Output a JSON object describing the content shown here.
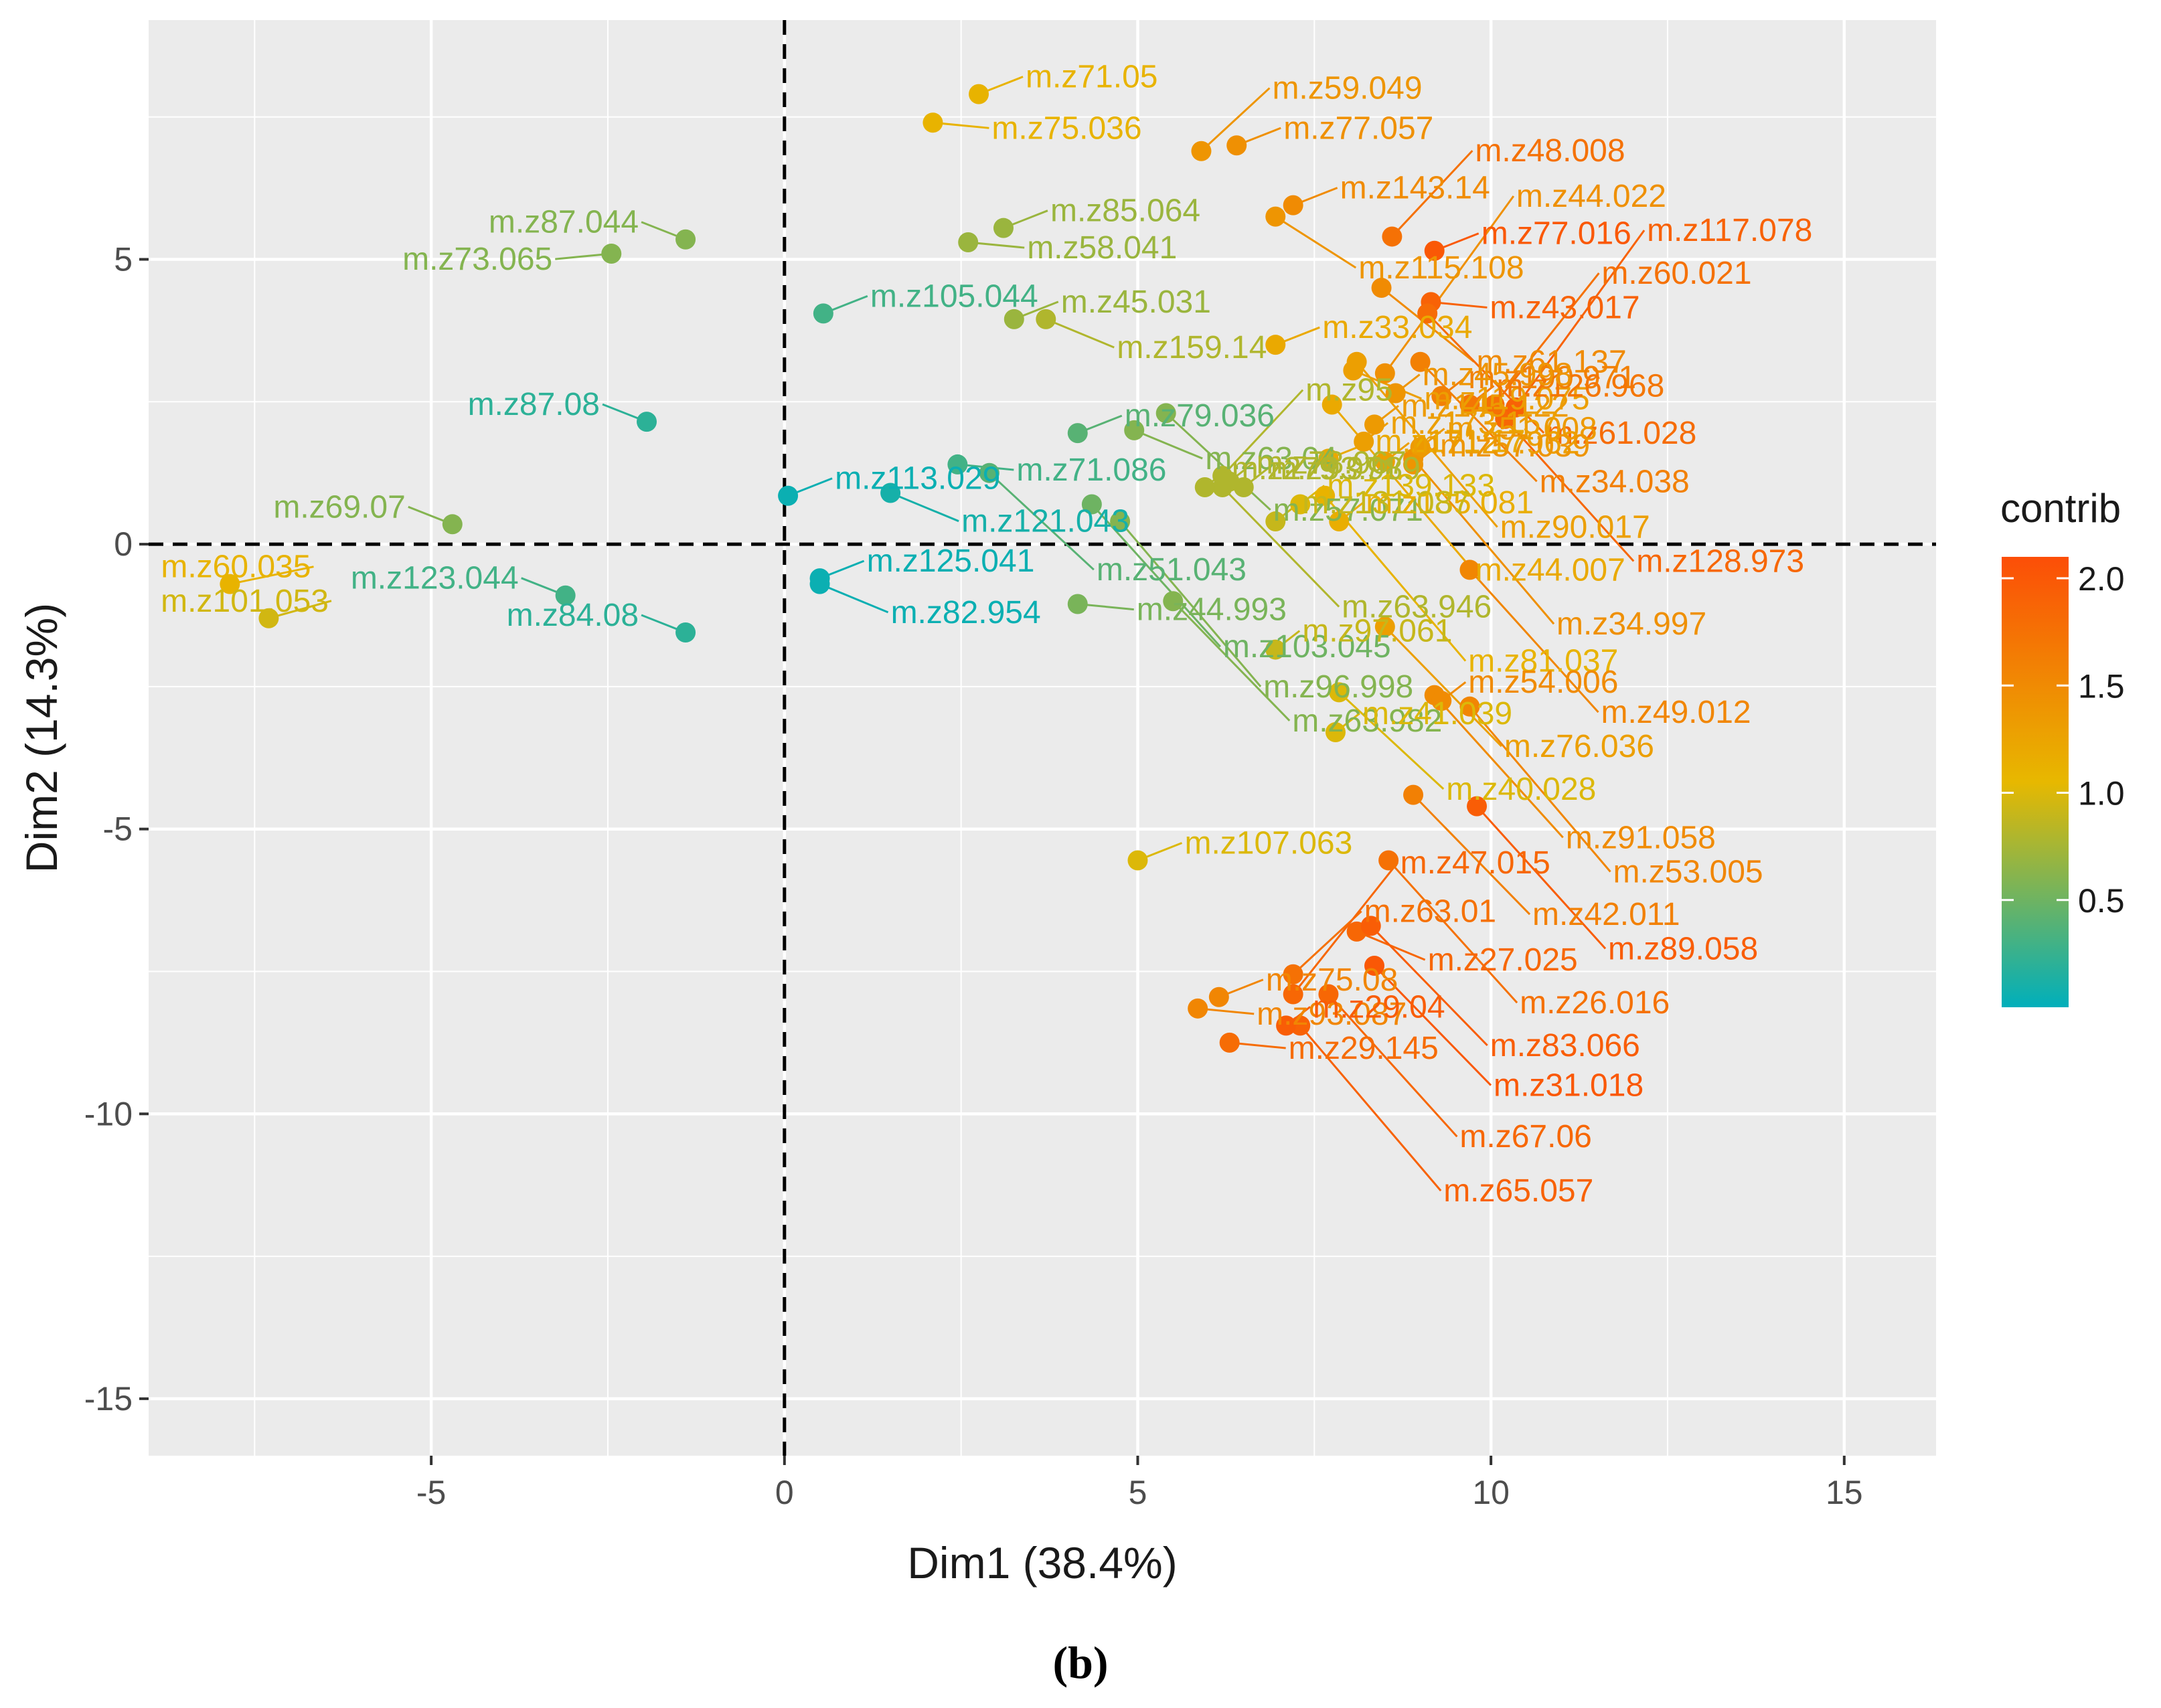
{
  "chart_data": {
    "type": "scatter",
    "xlabel": "Dim1 (38.4%)",
    "ylabel": "Dim2 (14.3%)",
    "xlim": [
      -9,
      16.3
    ],
    "ylim": [
      -16,
      9.2
    ],
    "x_ticks": [
      -5,
      0,
      5,
      10,
      15
    ],
    "y_ticks": [
      -15,
      -10,
      -5,
      0,
      5
    ],
    "grid": true,
    "reference_lines": {
      "x": 0,
      "y": 0,
      "style": "dashed"
    },
    "legend": {
      "title": "contrib",
      "type": "colorbar",
      "placement": "right",
      "ticks": [
        0.5,
        1.0,
        1.5,
        2.0
      ],
      "range": [
        0,
        2.1
      ],
      "colors": [
        "#00AFBB",
        "#E7B800",
        "#FC4E07"
      ]
    },
    "points": [
      {
        "label": "m.z71.05",
        "x": 2.75,
        "y": 7.9,
        "contrib": 1.1
      },
      {
        "label": "m.z75.036",
        "x": 2.1,
        "y": 7.4,
        "contrib": 1.1
      },
      {
        "label": "m.z77.057",
        "x": 6.4,
        "y": 7.0,
        "contrib": 1.45
      },
      {
        "label": "m.z59.049",
        "x": 5.9,
        "y": 6.9,
        "contrib": 1.4
      },
      {
        "label": "m.z143.14",
        "x": 7.2,
        "y": 5.95,
        "contrib": 1.5
      },
      {
        "label": "m.z77.016",
        "x": 9.2,
        "y": 5.15,
        "contrib": 2.0
      },
      {
        "label": "m.z115.108",
        "x": 6.95,
        "y": 5.75,
        "contrib": 1.4
      },
      {
        "label": "m.z48.008",
        "x": 8.6,
        "y": 5.4,
        "contrib": 1.75
      },
      {
        "label": "m.z43.017",
        "x": 9.15,
        "y": 4.25,
        "contrib": 1.9
      },
      {
        "label": "m.z87.044",
        "x": -1.4,
        "y": 5.35,
        "contrib": 0.6
      },
      {
        "label": "m.z73.065",
        "x": -2.45,
        "y": 5.1,
        "contrib": 0.6
      },
      {
        "label": "m.z85.064",
        "x": 3.1,
        "y": 5.55,
        "contrib": 0.7
      },
      {
        "label": "m.z58.041",
        "x": 2.6,
        "y": 5.3,
        "contrib": 0.7
      },
      {
        "label": "m.z61.137",
        "x": 8.45,
        "y": 4.5,
        "contrib": 1.5
      },
      {
        "label": "m.z33.034",
        "x": 6.95,
        "y": 3.5,
        "contrib": 1.2
      },
      {
        "label": "m.z119.075",
        "x": 8.05,
        "y": 3.05,
        "contrib": 1.3
      },
      {
        "label": "m.z61.028",
        "x": 9.1,
        "y": 4.05,
        "contrib": 1.8
      },
      {
        "label": "m.z34.038",
        "x": 9.0,
        "y": 3.2,
        "contrib": 1.6
      },
      {
        "label": "m.z105.044",
        "x": 0.55,
        "y": 4.05,
        "contrib": 0.3
      },
      {
        "label": "m.z45.031",
        "x": 3.25,
        "y": 3.95,
        "contrib": 0.7
      },
      {
        "label": "m.z159.14",
        "x": 3.7,
        "y": 3.95,
        "contrib": 0.8
      },
      {
        "label": "m.z90.017",
        "x": 8.1,
        "y": 3.2,
        "contrib": 1.3
      },
      {
        "label": "m.z44.022",
        "x": 8.5,
        "y": 3.0,
        "contrib": 1.45
      },
      {
        "label": "m.z128.973",
        "x": 10.2,
        "y": 2.2,
        "contrib": 1.85
      },
      {
        "label": "m.z190.971",
        "x": 9.3,
        "y": 2.6,
        "contrib": 1.6
      },
      {
        "label": "m.z87.08",
        "x": -1.95,
        "y": 2.15,
        "contrib": 0.2
      },
      {
        "label": "m.z79.036",
        "x": 4.15,
        "y": 1.95,
        "contrib": 0.4
      },
      {
        "label": "m.z63.04",
        "x": 4.95,
        "y": 2.0,
        "contrib": 0.6
      },
      {
        "label": "m.z44.007",
        "x": 7.75,
        "y": 2.45,
        "contrib": 1.2
      },
      {
        "label": "m.z145.122",
        "x": 8.35,
        "y": 2.1,
        "contrib": 1.35
      },
      {
        "label": "m.z57.071",
        "x": 5.4,
        "y": 2.3,
        "contrib": 0.6
      },
      {
        "label": "m.z60.021",
        "x": 10.05,
        "y": 2.45,
        "contrib": 1.75
      },
      {
        "label": "m.z69.07",
        "x": -4.7,
        "y": 0.35,
        "contrib": 0.6
      },
      {
        "label": "m.z113.029",
        "x": 0.05,
        "y": 0.85,
        "contrib": 0.05
      },
      {
        "label": "m.z121.043",
        "x": 1.5,
        "y": 0.9,
        "contrib": 0.1
      },
      {
        "label": "m.z71.086",
        "x": 2.45,
        "y": 1.4,
        "contrib": 0.3
      },
      {
        "label": "m.z51.043",
        "x": 2.9,
        "y": 1.25,
        "contrib": 0.4
      },
      {
        "label": "m.z63.946",
        "x": 6.2,
        "y": 1.0,
        "contrib": 0.8
      },
      {
        "label": "m.z171.17",
        "x": 7.7,
        "y": 1.5,
        "contrib": 1.2
      },
      {
        "label": "m.z34.997",
        "x": 8.9,
        "y": 1.5,
        "contrib": 1.45
      },
      {
        "label": "m.z126.968",
        "x": 9.7,
        "y": 2.45,
        "contrib": 1.7
      },
      {
        "label": "m.z117.078",
        "x": 10.35,
        "y": 2.4,
        "contrib": 1.9
      },
      {
        "label": "m.z125.041",
        "x": 0.5,
        "y": -0.6,
        "contrib": 0.05
      },
      {
        "label": "m.z103.045",
        "x": 4.35,
        "y": 0.7,
        "contrib": 0.5
      },
      {
        "label": "m.z96.998",
        "x": 4.75,
        "y": 0.4,
        "contrib": 0.6
      },
      {
        "label": "m.z81.037",
        "x": 7.65,
        "y": 0.85,
        "contrib": 1.1
      },
      {
        "label": "m.z45.998",
        "x": 8.65,
        "y": 2.65,
        "contrib": 1.4
      },
      {
        "label": "m.z51.008",
        "x": 9.0,
        "y": 1.7,
        "contrib": 1.35
      },
      {
        "label": "m.z127.962",
        "x": 8.5,
        "y": 1.45,
        "contrib": 1.3
      },
      {
        "label": "m.z60.035",
        "x": -7.85,
        "y": -0.7,
        "contrib": 1.1
      },
      {
        "label": "m.z101.053",
        "x": -7.3,
        "y": -1.3,
        "contrib": 0.95
      },
      {
        "label": "m.z123.044",
        "x": -3.1,
        "y": -0.9,
        "contrib": 0.3
      },
      {
        "label": "m.z82.954",
        "x": 0.5,
        "y": -0.7,
        "contrib": 0.05
      },
      {
        "label": "m.z84.08",
        "x": -1.4,
        "y": -1.55,
        "contrib": 0.2
      },
      {
        "label": "m.z279.971",
        "x": 5.95,
        "y": 1.0,
        "contrib": 0.8
      },
      {
        "label": "m.z135.081",
        "x": 7.85,
        "y": 0.4,
        "contrib": 1.15
      },
      {
        "label": "m.z173.157",
        "x": 8.2,
        "y": 1.8,
        "contrib": 1.3
      },
      {
        "label": "m.z49.012",
        "x": 9.7,
        "y": -0.45,
        "contrib": 1.55
      },
      {
        "label": "m.z95",
        "x": 6.2,
        "y": 1.2,
        "contrib": 0.8
      },
      {
        "label": "m.z131.087",
        "x": 6.95,
        "y": 0.4,
        "contrib": 0.9
      },
      {
        "label": "m.z93.989",
        "x": 6.5,
        "y": 1.0,
        "contrib": 0.8
      },
      {
        "label": "m.z63.982",
        "x": 5.5,
        "y": -1.0,
        "contrib": 0.6
      },
      {
        "label": "m.z139.133",
        "x": 7.3,
        "y": 0.7,
        "contrib": 1.0
      },
      {
        "label": "m.z76.036",
        "x": 8.5,
        "y": -1.45,
        "contrib": 1.3
      },
      {
        "label": "m.z57.039",
        "x": 8.9,
        "y": 1.4,
        "contrib": 1.4
      },
      {
        "label": "m.z78.967",
        "x": 6.3,
        "y": 1.1,
        "contrib": 0.8
      },
      {
        "label": "m.z44.993",
        "x": 4.15,
        "y": -1.05,
        "contrib": 0.55
      },
      {
        "label": "m.z40.028",
        "x": 7.85,
        "y": -2.6,
        "contrib": 1.0
      },
      {
        "label": "m.z91.058",
        "x": 9.2,
        "y": -2.65,
        "contrib": 1.5
      },
      {
        "label": "m.z53.005",
        "x": 9.7,
        "y": -2.85,
        "contrib": 1.55
      },
      {
        "label": "m.z54.006",
        "x": 9.3,
        "y": -2.75,
        "contrib": 1.5
      },
      {
        "label": "m.z97.061",
        "x": 6.95,
        "y": -1.85,
        "contrib": 0.9
      },
      {
        "label": "m.z41.039",
        "x": 7.8,
        "y": -3.3,
        "contrib": 1.0
      },
      {
        "label": "m.z42.011",
        "x": 8.9,
        "y": -4.4,
        "contrib": 1.6
      },
      {
        "label": "m.z89.058",
        "x": 9.8,
        "y": -4.6,
        "contrib": 1.95
      },
      {
        "label": "m.z107.063",
        "x": 5.0,
        "y": -5.55,
        "contrib": 1.0
      },
      {
        "label": "m.z26.016",
        "x": 8.55,
        "y": -5.55,
        "contrib": 1.75
      },
      {
        "label": "m.z27.025",
        "x": 8.1,
        "y": -6.8,
        "contrib": 1.85
      },
      {
        "label": "m.z83.066",
        "x": 8.3,
        "y": -6.7,
        "contrib": 1.95
      },
      {
        "label": "m.z75.08",
        "x": 6.15,
        "y": -7.95,
        "contrib": 1.55
      },
      {
        "label": "m.z63.01",
        "x": 7.2,
        "y": -7.55,
        "contrib": 1.75
      },
      {
        "label": "m.z31.018",
        "x": 8.35,
        "y": -7.4,
        "contrib": 2.0
      },
      {
        "label": "m.z93.087",
        "x": 5.85,
        "y": -8.15,
        "contrib": 1.55
      },
      {
        "label": "m.z47.015",
        "x": 7.2,
        "y": -7.9,
        "contrib": 1.85
      },
      {
        "label": "m.z67.06",
        "x": 7.7,
        "y": -7.9,
        "contrib": 1.85
      },
      {
        "label": "m.z29.145",
        "x": 6.3,
        "y": -8.75,
        "contrib": 1.8
      },
      {
        "label": "m.z65.057",
        "x": 7.3,
        "y": -8.45,
        "contrib": 1.9
      },
      {
        "label": "m.z29.04",
        "x": 7.1,
        "y": -8.45,
        "contrib": 1.95
      }
    ]
  },
  "caption": {
    "label": "(b)"
  }
}
